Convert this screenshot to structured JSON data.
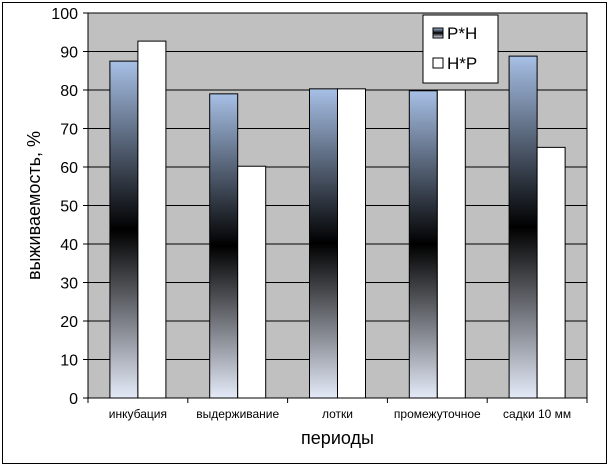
{
  "colors": {
    "plot_bg": "#c0c0c0",
    "frame": "#000000",
    "series2_fill": "#ffffff",
    "grad_top": "#a7c0e6",
    "grad_mid": "#000000",
    "grad_bottom": "#e4eaf8"
  },
  "chart_data": {
    "type": "bar",
    "title": "",
    "xlabel": "периоды",
    "ylabel": "выживаемость, %",
    "ylim": [
      0,
      100
    ],
    "yticks": [
      0,
      10,
      20,
      30,
      40,
      50,
      60,
      70,
      80,
      90,
      100
    ],
    "grid": true,
    "legend_position": "top-right",
    "categories": [
      "инкубация",
      "выдерживание",
      "лотки",
      "промежуточное",
      "садки 10 мм"
    ],
    "series": [
      {
        "name": "Р*Н",
        "values": [
          87.5,
          79,
          80.3,
          79.8,
          88.8
        ]
      },
      {
        "name": "Н*Р",
        "values": [
          92.7,
          60.2,
          80.3,
          80,
          65.1
        ]
      }
    ]
  }
}
